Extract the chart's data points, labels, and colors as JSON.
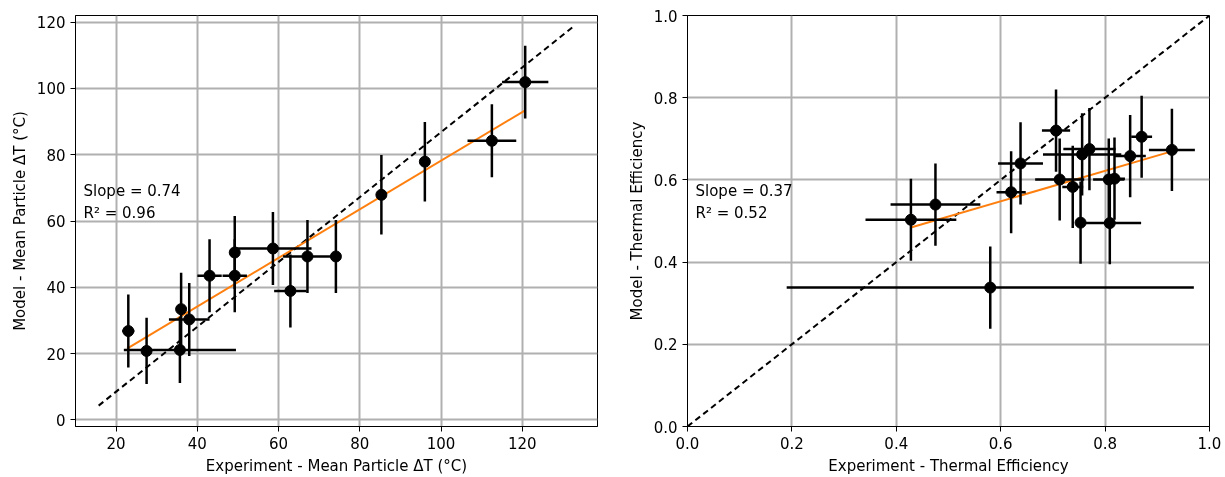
{
  "chart_data": [
    {
      "type": "scatter",
      "xlabel": "Experiment - Mean Particle ΔT (°C)",
      "ylabel": "Model - Mean Particle ΔT (°C)",
      "annotations": [
        "Slope = 0.74",
        "R² = 0.96"
      ],
      "xlim": [
        10,
        138.5
      ],
      "ylim": [
        -2,
        122
      ],
      "xticks": [
        20,
        40,
        60,
        80,
        100,
        120
      ],
      "yticks": [
        0,
        20,
        40,
        60,
        80,
        100,
        120
      ],
      "grid": true,
      "series": [
        {
          "type": "line",
          "color": "#000000",
          "line_style": "dashed",
          "x": [
            15.7,
            132.7
          ],
          "values": [
            4.3,
            118.8
          ]
        },
        {
          "type": "line",
          "color": "#ff7f0e",
          "x": [
            22.7,
            120.7
          ],
          "values": [
            21.5,
            93.4
          ]
        },
        {
          "marker": "circle",
          "color": "#000000",
          "x": [
            23,
            27.5,
            35.7,
            36,
            38,
            43,
            49.2,
            49.2,
            58.6,
            62.9,
            67.1,
            74.1,
            85.3,
            96,
            112.5,
            120.7
          ],
          "values": [
            26.8,
            20.8,
            21.1,
            33.4,
            30.3,
            43.5,
            50.5,
            43.5,
            51.7,
            38.9,
            49.3,
            49.3,
            67.9,
            77.9,
            84.2,
            101.9
          ],
          "errors": [
            11,
            10,
            10,
            11,
            11,
            11,
            11,
            11,
            11,
            11,
            11,
            11,
            12,
            12,
            11,
            11
          ],
          "xerrors": [
            1.5,
            null,
            13.8,
            null,
            5,
            3,
            null,
            3,
            9.5,
            4,
            6,
            null,
            null,
            null,
            6,
            5.7
          ]
        }
      ]
    },
    {
      "type": "scatter",
      "xlabel": "Experiment - Thermal Efficiency",
      "ylabel": "Model - Thermal Efficiency",
      "annotations": [
        "Slope = 0.37",
        "R² = 0.52"
      ],
      "xlim": [
        0,
        1
      ],
      "ylim": [
        0,
        1
      ],
      "xticks": [
        {
          "value": 0,
          "label": "0.0"
        },
        0.2,
        0.4,
        0.6,
        0.8,
        {
          "value": 1,
          "label": "1.0"
        }
      ],
      "yticks": [
        {
          "value": 0,
          "label": "0.0"
        },
        0.2,
        0.4,
        0.6,
        0.8,
        {
          "value": 1,
          "label": "1.0"
        }
      ],
      "grid": true,
      "series": [
        {
          "type": "line",
          "color": "#000000",
          "line_style": "dashed",
          "x": [
            0,
            1
          ],
          "values": [
            0,
            1
          ]
        },
        {
          "type": "line",
          "color": "#ff7f0e",
          "x": [
            0.428,
            0.921
          ],
          "values": [
            0.484,
            0.667
          ]
        },
        {
          "marker": "circle",
          "color": "#000000",
          "x": [
            0.428,
            0.475,
            0.58,
            0.62,
            0.638,
            0.706,
            0.713,
            0.738,
            0.753,
            0.809,
            0.756,
            0.77,
            0.807,
            0.818,
            0.848,
            0.87,
            0.928
          ],
          "values": [
            0.503,
            0.54,
            0.338,
            0.57,
            0.64,
            0.72,
            0.601,
            0.583,
            0.496,
            0.495,
            0.662,
            0.675,
            0.601,
            0.603,
            0.658,
            0.705,
            0.673
          ],
          "errors": [
            0.1,
            0.1,
            0.1,
            0.1,
            0.1,
            0.1,
            0.1,
            0.1,
            0.1,
            0.1,
            0.1,
            0.1,
            0.1,
            0.1,
            0.1,
            0.1,
            0.1
          ],
          "xerrors": [
            0.087,
            0.086,
            0.39,
            0.028,
            0.043,
            0.027,
            0.047,
            0.02,
            null,
            0.06,
            0.075,
            0.05,
            0.03,
            0.02,
            0.03,
            0.02,
            0.044
          ]
        }
      ]
    }
  ]
}
